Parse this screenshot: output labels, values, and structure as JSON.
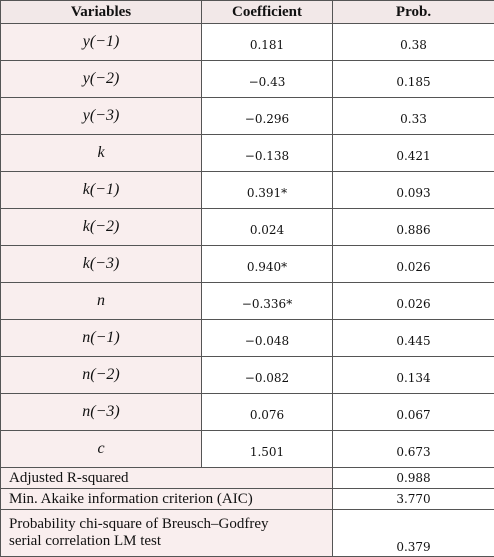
{
  "table": {
    "headers": [
      "Variables",
      "Coefficient",
      "Prob."
    ],
    "rows": [
      {
        "variable": "y(−1)",
        "coefficient": "0.181",
        "prob": "0.38"
      },
      {
        "variable": "y(−2)",
        "coefficient": "−0.43",
        "prob": "0.185"
      },
      {
        "variable": "y(−3)",
        "coefficient": "−0.296",
        "prob": "0.33"
      },
      {
        "variable": "k",
        "coefficient": "−0.138",
        "prob": "0.421"
      },
      {
        "variable": "k(−1)",
        "coefficient": "0.391*",
        "prob": "0.093"
      },
      {
        "variable": "k(−2)",
        "coefficient": "0.024",
        "prob": "0.886"
      },
      {
        "variable": "k(−3)",
        "coefficient": "0.940*",
        "prob": "0.026"
      },
      {
        "variable": "n",
        "coefficient": "−0.336*",
        "prob": "0.026"
      },
      {
        "variable": "n(−1)",
        "coefficient": "−0.048",
        "prob": "0.445"
      },
      {
        "variable": "n(−2)",
        "coefficient": "−0.082",
        "prob": "0.134"
      },
      {
        "variable": "n(−3)",
        "coefficient": "0.076",
        "prob": "0.067"
      },
      {
        "variable": "c",
        "coefficient": "1.501",
        "prob": "0.673"
      }
    ],
    "stats": [
      {
        "label": "Adjusted R-squared",
        "value": "0.988"
      },
      {
        "label": "Min. Akaike information criterion (AIC)",
        "value": "3.770"
      },
      {
        "label_line1": "Probability chi-square of Breusch–Godfrey",
        "label_line2": "serial correlation LM test",
        "value": "0.379"
      }
    ]
  }
}
